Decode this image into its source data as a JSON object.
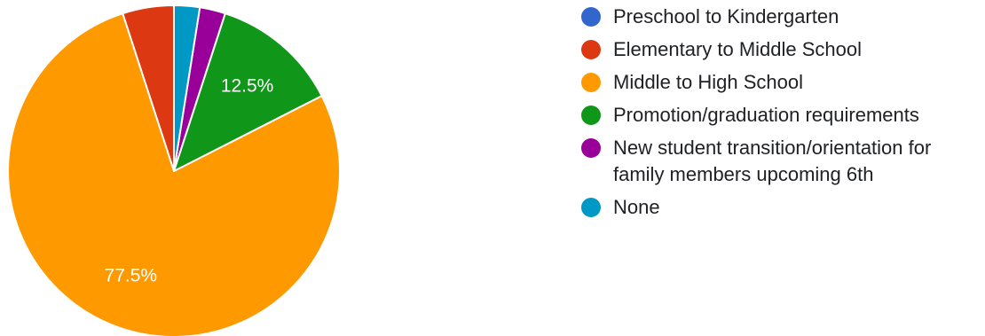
{
  "chart_data": {
    "type": "pie",
    "title": "",
    "categories": [
      "Preschool to Kindergarten",
      "Elementary to Middle School",
      "Middle to High School",
      "Promotion/graduation requirements",
      "New student transition/orientation for family members upcoming 6th",
      "None"
    ],
    "values": [
      0,
      5,
      77.5,
      12.5,
      2.5,
      2.5
    ],
    "value_unit": "%",
    "colors": [
      "#3366cc",
      "#dc3912",
      "#ff9900",
      "#109618",
      "#990099",
      "#0099c6"
    ],
    "data_labels": [
      "",
      "",
      "77.5%",
      "12.5%",
      "",
      ""
    ],
    "start_angle_deg": 90,
    "direction": "counterclockwise",
    "legend_position": "right"
  }
}
